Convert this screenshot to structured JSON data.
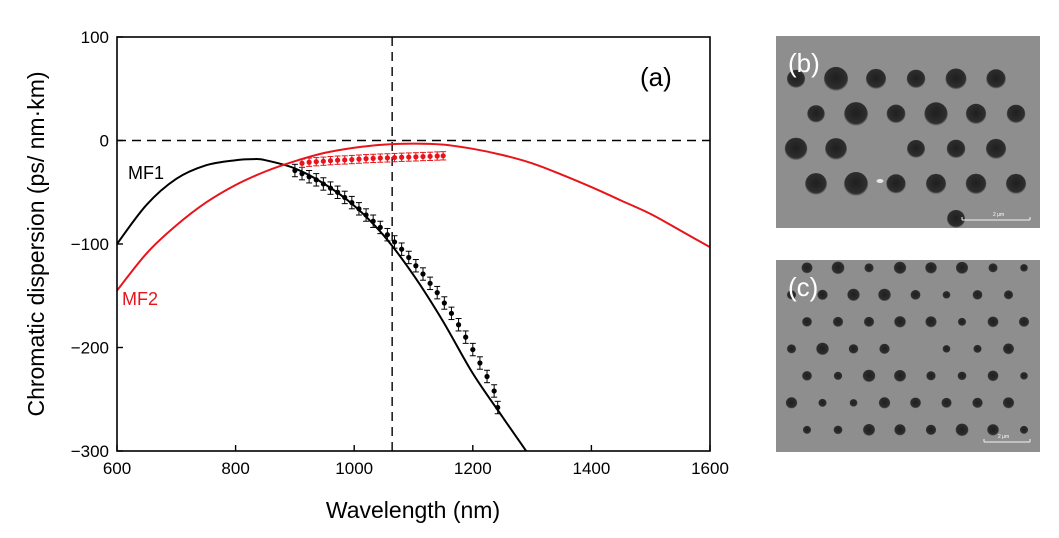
{
  "colors": {
    "mf1": "#000000",
    "mf2": "#e8141b",
    "sem_background": "#8e8e8e",
    "sem_hole": "#2b2b2b"
  },
  "chart_data": {
    "type": "line",
    "panel_label": "(a)",
    "xlabel": "Wavelength (nm)",
    "ylabel": "Chromatic dispersion (ps/ nm·km)",
    "xlim": [
      600,
      1600
    ],
    "ylim": [
      -300,
      100
    ],
    "xticks": [
      600,
      800,
      1000,
      1200,
      1400,
      1600
    ],
    "yticks": [
      -300,
      -200,
      -100,
      0,
      100
    ],
    "ytick_labels": [
      "−300",
      "−200",
      "−100",
      "0",
      "100"
    ],
    "reference_lines": {
      "horizontal_y": 0,
      "vertical_x": 1064,
      "style": "dashed"
    },
    "grid": false,
    "legend": "none (curves labeled directly)",
    "series": [
      {
        "name": "MF1",
        "kind": "model curve",
        "color": "#000000",
        "x": [
          600,
          650,
          700,
          750,
          800,
          830,
          850,
          900,
          950,
          1000,
          1050,
          1100,
          1150,
          1200,
          1250,
          1290
        ],
        "y": [
          -100,
          -62,
          -37,
          -24,
          -19,
          -18,
          -19,
          -27,
          -42,
          -63,
          -92,
          -130,
          -175,
          -225,
          -267,
          -300
        ]
      },
      {
        "name": "MF2",
        "kind": "model curve",
        "color": "#e8141b",
        "x": [
          600,
          650,
          700,
          750,
          800,
          850,
          900,
          950,
          1000,
          1050,
          1100,
          1150,
          1200,
          1250,
          1300,
          1350,
          1400,
          1450,
          1500,
          1550,
          1600
        ],
        "y": [
          -145,
          -109,
          -82,
          -60,
          -43,
          -30,
          -20,
          -12,
          -7,
          -4,
          -3,
          -4,
          -8,
          -14,
          -22,
          -33,
          -45,
          -58,
          -71,
          -87,
          -103
        ]
      },
      {
        "name": "MF1",
        "kind": "measured points with error bars",
        "color": "#000000",
        "x": [
          900,
          912,
          924,
          936,
          948,
          960,
          972,
          984,
          996,
          1008,
          1020,
          1032,
          1044,
          1056,
          1068,
          1080,
          1092,
          1104,
          1116,
          1128,
          1140,
          1152,
          1164,
          1176,
          1188,
          1200,
          1212,
          1224,
          1236,
          1242
        ],
        "y": [
          -29,
          -32,
          -35,
          -38,
          -42,
          -46,
          -50,
          -55,
          -60,
          -66,
          -72,
          -78,
          -84,
          -91,
          -98,
          -105,
          -113,
          -121,
          -129,
          -138,
          -147,
          -157,
          -167,
          -178,
          -190,
          -202,
          -215,
          -228,
          -242,
          -258
        ],
        "error": 6
      },
      {
        "name": "MF2",
        "kind": "measured points with error bars",
        "color": "#e8141b",
        "x": [
          912,
          924,
          936,
          948,
          960,
          972,
          984,
          996,
          1008,
          1020,
          1032,
          1044,
          1056,
          1068,
          1080,
          1092,
          1104,
          1116,
          1128,
          1140,
          1150
        ],
        "y": [
          -22,
          -21,
          -20.5,
          -20,
          -19.5,
          -19,
          -18.8,
          -18.4,
          -18,
          -17.6,
          -17.3,
          -17,
          -16.8,
          -16.5,
          -16.2,
          -16,
          -15.8,
          -15.5,
          -15.3,
          -15,
          -14.8
        ],
        "error": 4
      }
    ]
  },
  "sem_images": [
    {
      "label": "(b)",
      "description": "SEM micrograph",
      "scale_bar_text": "2 μm"
    },
    {
      "label": "(c)",
      "description": "SEM micrograph",
      "scale_bar_text": "2 μm"
    }
  ]
}
